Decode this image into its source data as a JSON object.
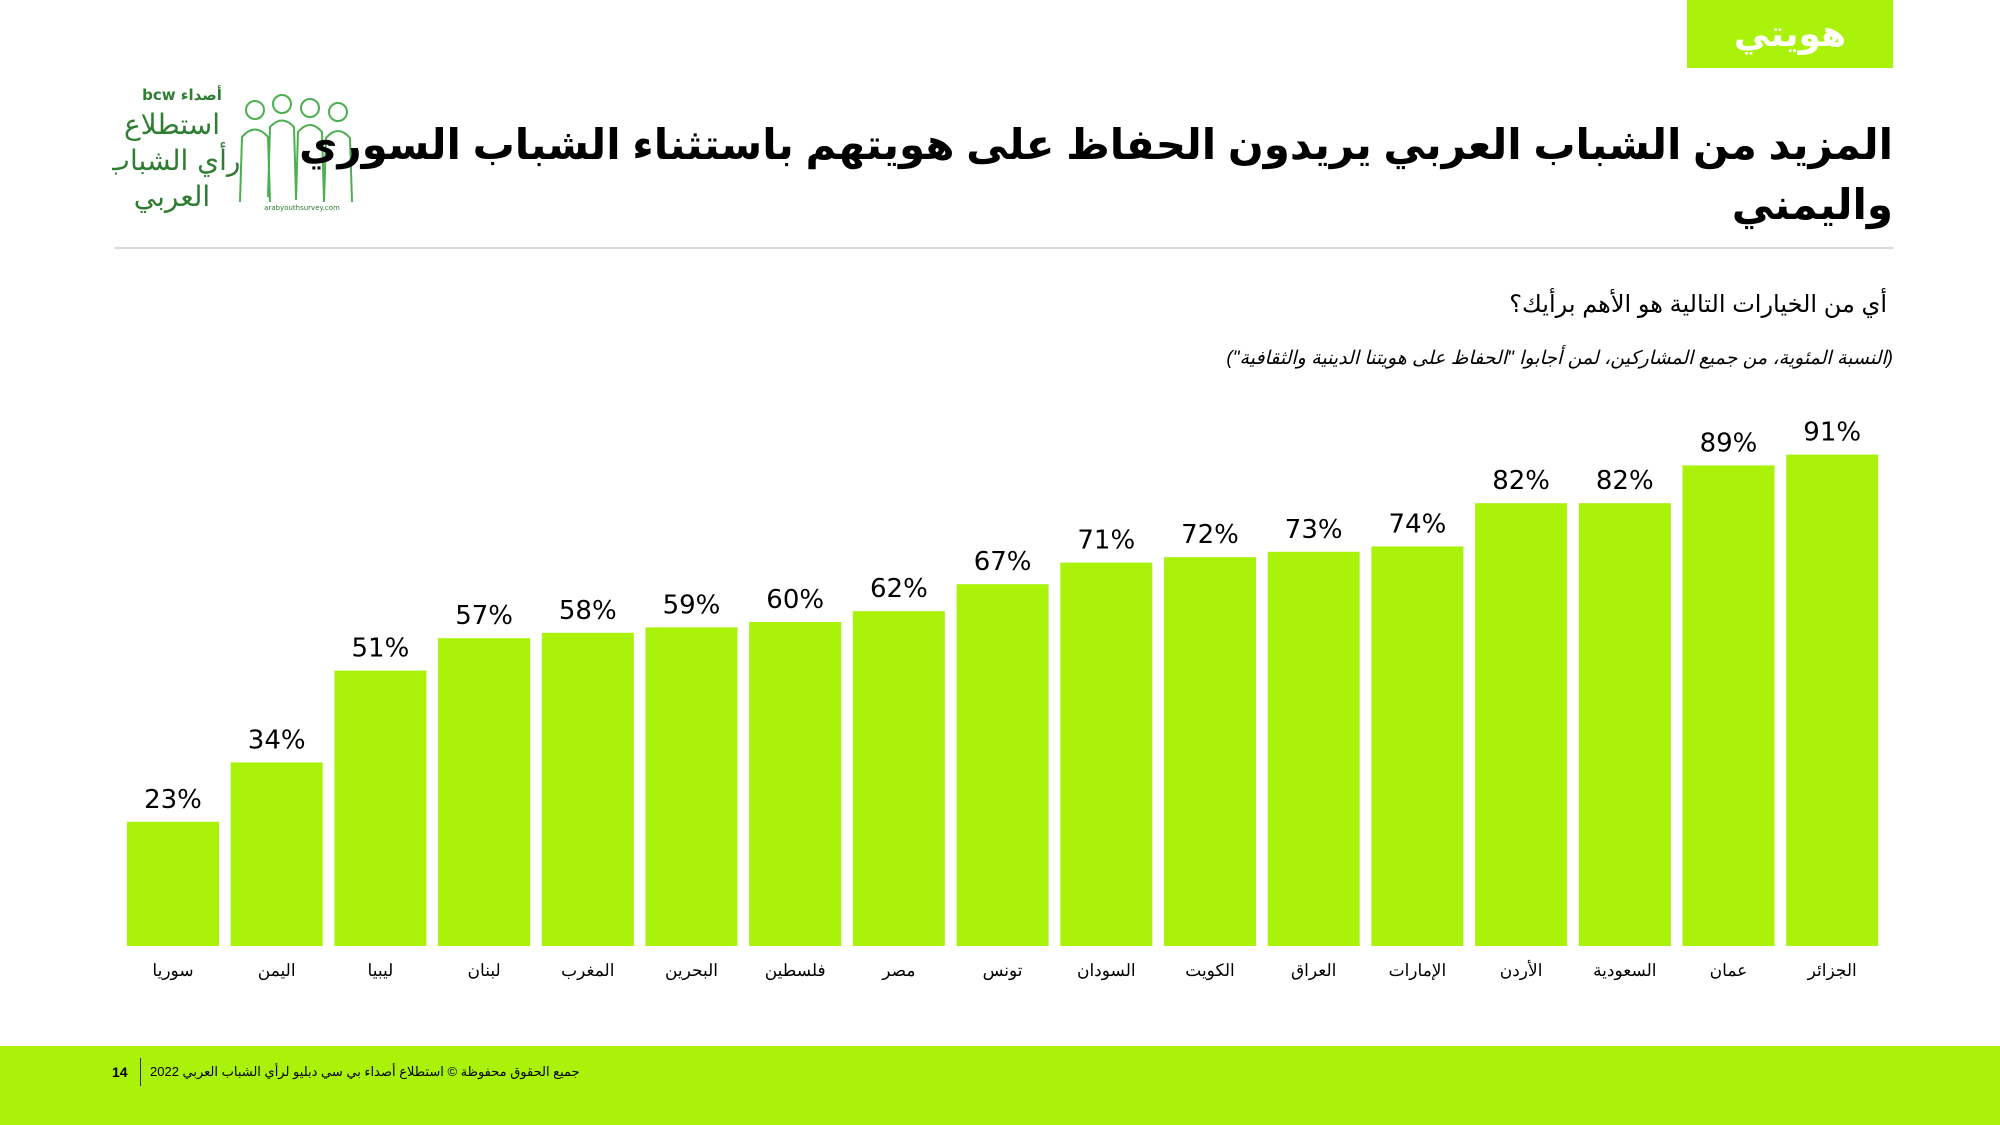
{
  "tag": "هويتي",
  "logo": {
    "brand_small": "bcw أصداء",
    "brand_line1": "استطلاع",
    "brand_line2": "رأي الشباب",
    "brand_line3": "العربي",
    "url": "arabyouthsurvey.com",
    "brand_color": "#2e7d32"
  },
  "title": "المزيد من الشباب العربي يريدون الحفاظ على هويتهم باستثناء الشباب السوري واليمني",
  "question": "أي من الخيارات التالية هو الأهم برأيك؟",
  "note": "(النسبة المئوية، من جميع المشاركين، لمن أجابوا \"الحفاظ على هويتنا الدينية والثقافية\")",
  "chart_data": {
    "type": "bar",
    "categories": [
      "سوريا",
      "اليمن",
      "ليبيا",
      "لبنان",
      "المغرب",
      "البحرين",
      "فلسطين",
      "مصر",
      "تونس",
      "السودان",
      "الكويت",
      "العراق",
      "الإمارات",
      "الأردن",
      "السعودية",
      "عمان",
      "الجزائر"
    ],
    "values": [
      23,
      34,
      51,
      57,
      58,
      59,
      60,
      62,
      67,
      71,
      72,
      73,
      74,
      82,
      82,
      89,
      91
    ],
    "value_labels": [
      "23%",
      "34%",
      "51%",
      "57%",
      "58%",
      "59%",
      "60%",
      "62%",
      "67%",
      "71%",
      "72%",
      "73%",
      "74%",
      "82%",
      "82%",
      "89%",
      "91%"
    ],
    "ylim": [
      0,
      100
    ],
    "grid": false,
    "bar_color": "#aaf20a"
  },
  "footer": {
    "page": "14",
    "copyright": "جميع الحقوق محفوظة © استطلاع أصداء بي سي دبليو لرأي الشباب العربي 2022",
    "color": "#aaf20a"
  }
}
